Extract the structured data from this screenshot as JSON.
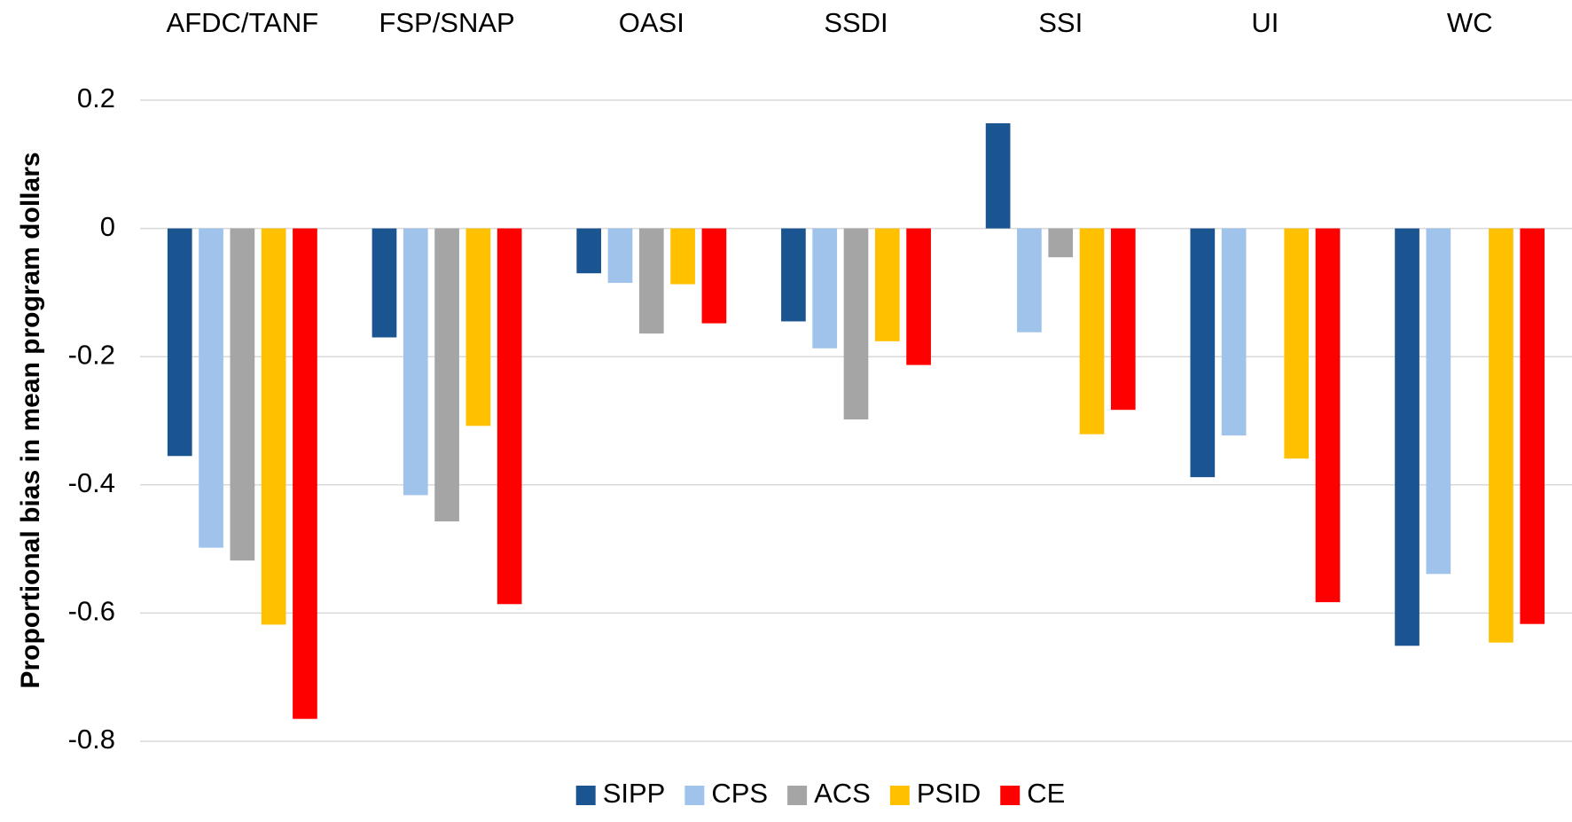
{
  "chart_data": {
    "type": "bar",
    "y_label": "Proportional bias in mean program dollars",
    "categories": [
      "AFDC/TANF",
      "FSP/SNAP",
      "OASI",
      "SSDI",
      "SSI",
      "UI",
      "WC"
    ],
    "series": [
      {
        "name": "SIPP",
        "color": "#1b5591",
        "values": [
          -0.355,
          -0.17,
          -0.07,
          -0.145,
          0.164,
          -0.388,
          -0.651
        ]
      },
      {
        "name": "CPS",
        "color": "#9fc3ea",
        "values": [
          -0.498,
          -0.416,
          -0.085,
          -0.187,
          -0.162,
          -0.323,
          -0.539
        ]
      },
      {
        "name": "ACS",
        "color": "#a5a5a5",
        "values": [
          -0.518,
          -0.457,
          -0.164,
          -0.298,
          -0.045,
          null,
          null
        ]
      },
      {
        "name": "PSID",
        "color": "#ffc000",
        "values": [
          -0.618,
          -0.308,
          -0.087,
          -0.176,
          -0.321,
          -0.359,
          -0.646
        ]
      },
      {
        "name": "CE",
        "color": "#ff0000",
        "values": [
          -0.765,
          -0.586,
          -0.148,
          -0.213,
          -0.283,
          -0.583,
          -0.617
        ]
      }
    ],
    "ylim": [
      -0.8,
      0.2
    ],
    "yticks": [
      0.2,
      0,
      -0.2,
      -0.4,
      -0.6,
      -0.8
    ],
    "grid": true,
    "legend": "bottom"
  }
}
